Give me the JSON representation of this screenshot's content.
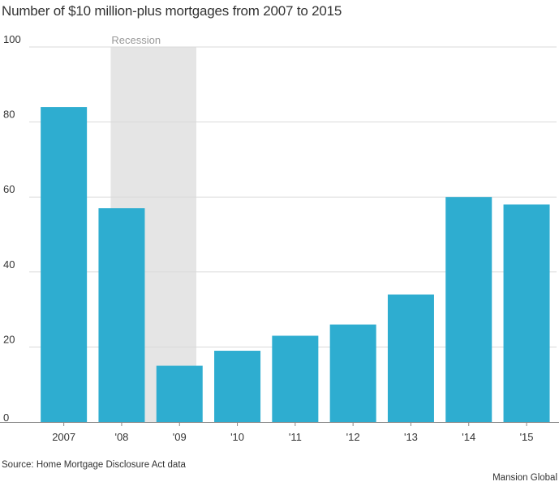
{
  "chart_data": {
    "type": "bar",
    "title": "Number of $10 million-plus mortgages from 2007 to 2015",
    "categories": [
      "2007",
      "'08",
      "'09",
      "'10",
      "'11",
      "'12",
      "'13",
      "'14",
      "'15"
    ],
    "values": [
      84,
      57,
      15,
      19,
      23,
      26,
      34,
      60,
      58
    ],
    "ylim": [
      0,
      100
    ],
    "yticks": [
      0,
      20,
      40,
      60,
      80,
      100
    ],
    "grid": true,
    "bar_color": "#2eadd0",
    "band": {
      "label": "Recession",
      "from_index": 1.31,
      "to_index": 2.79,
      "color": "#e5e5e5"
    },
    "source": "Source: Home Mortgage Disclosure Act data",
    "credit": "Mansion Global"
  }
}
